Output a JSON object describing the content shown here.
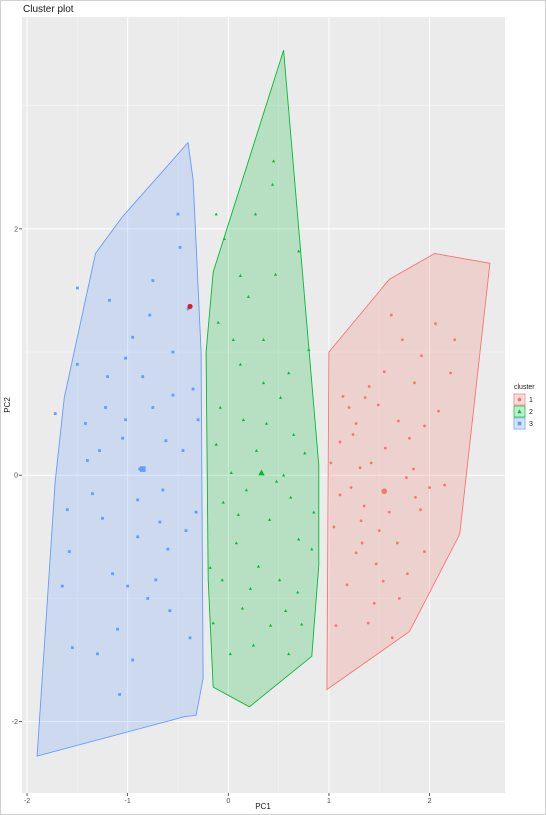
{
  "chart_data": {
    "type": "scatter",
    "title": "Cluster plot",
    "xlabel": "PC1",
    "ylabel": "PC2",
    "xlim": [
      -2.05,
      2.75
    ],
    "ylim": [
      -2.58,
      3.72
    ],
    "x_ticks": [
      "-2",
      "-1",
      "0",
      "1",
      "2"
    ],
    "x_tick_values": [
      -2,
      -1,
      0,
      1,
      2
    ],
    "y_ticks": [
      "-2",
      "0",
      "2"
    ],
    "y_tick_values": [
      -2,
      0,
      2
    ],
    "grid": true,
    "legend": {
      "title": "cluster",
      "placement": "right",
      "entries": [
        {
          "label": "1",
          "shape": "circle",
          "color": "#F8766D"
        },
        {
          "label": "2",
          "shape": "triangle",
          "color": "#00BA38"
        },
        {
          "label": "3",
          "shape": "square",
          "color": "#619CFF"
        }
      ]
    },
    "series": [
      {
        "name": "1",
        "color": "#F8766D",
        "shape": "circle",
        "center": [
          1.55,
          -0.13
        ],
        "hull": [
          [
            2.05,
            1.8
          ],
          [
            2.6,
            1.72
          ],
          [
            2.3,
            -0.48
          ],
          [
            1.8,
            -1.27
          ],
          [
            0.98,
            -1.74
          ],
          [
            1.0,
            1.0
          ],
          [
            1.6,
            1.59
          ]
        ],
        "points": [
          [
            1.77,
            -0.02
          ],
          [
            1.68,
            -0.55
          ],
          [
            1.11,
            -0.16
          ],
          [
            1.32,
            -0.37
          ],
          [
            1.42,
            0.1
          ],
          [
            1.27,
            -0.63
          ],
          [
            2.0,
            -0.1
          ],
          [
            1.91,
            -0.28
          ],
          [
            1.14,
            0.64
          ],
          [
            1.24,
            0.33
          ],
          [
            1.92,
            0.97
          ],
          [
            1.69,
            0.44
          ],
          [
            1.86,
            -0.18
          ],
          [
            1.31,
            0.06
          ],
          [
            1.47,
            -0.72
          ],
          [
            1.39,
            -1.2
          ],
          [
            1.54,
            -0.86
          ],
          [
            2.21,
            0.83
          ],
          [
            2.06,
            1.23
          ],
          [
            1.73,
            1.1
          ],
          [
            1.85,
            0.75
          ],
          [
            1.55,
            0.84
          ],
          [
            1.36,
            0.63
          ],
          [
            1.05,
            -0.42
          ],
          [
            1.02,
            0.1
          ],
          [
            1.6,
            -0.3
          ],
          [
            2.09,
            0.52
          ],
          [
            1.49,
            0.57
          ],
          [
            1.18,
            -0.89
          ],
          [
            1.78,
            -0.8
          ],
          [
            2.25,
            1.1
          ],
          [
            1.62,
            1.3
          ],
          [
            1.45,
            -1.04
          ],
          [
            1.95,
            -0.62
          ],
          [
            1.11,
            0.27
          ],
          [
            1.33,
            -0.55
          ],
          [
            1.22,
            -0.1
          ],
          [
            1.7,
            -1.0
          ],
          [
            1.56,
            0.22
          ],
          [
            1.8,
            0.3
          ],
          [
            1.27,
            0.42
          ],
          [
            1.4,
            0.72
          ],
          [
            1.5,
            -0.45
          ],
          [
            1.07,
            -1.22
          ],
          [
            1.95,
            0.4
          ],
          [
            1.63,
            -1.32
          ],
          [
            1.84,
            0.05
          ],
          [
            1.2,
            0.55
          ],
          [
            1.35,
            -0.25
          ],
          [
            2.15,
            -0.08
          ]
        ]
      },
      {
        "name": "2",
        "color": "#00BA38",
        "shape": "triangle",
        "center": [
          0.33,
          0.02
        ],
        "hull": [
          [
            0.55,
            3.45
          ],
          [
            0.9,
            0.08
          ],
          [
            0.9,
            -0.73
          ],
          [
            0.83,
            -1.47
          ],
          [
            0.21,
            -1.88
          ],
          [
            -0.15,
            -1.72
          ],
          [
            -0.2,
            -0.85
          ],
          [
            -0.22,
            1.0
          ],
          [
            -0.15,
            1.65
          ]
        ],
        "points": [
          [
            0.45,
            2.55
          ],
          [
            -0.12,
            2.12
          ],
          [
            0.05,
            1.1
          ],
          [
            0.35,
            1.1
          ],
          [
            0.7,
            1.82
          ],
          [
            0.52,
            0.63
          ],
          [
            -0.1,
            1.24
          ],
          [
            0.12,
            0.9
          ],
          [
            0.6,
            0.83
          ],
          [
            0.28,
            0.2
          ],
          [
            0.76,
            0.18
          ],
          [
            0.18,
            -0.12
          ],
          [
            0.41,
            -0.36
          ],
          [
            -0.05,
            -0.22
          ],
          [
            0.62,
            -0.18
          ],
          [
            0.83,
            -0.6
          ],
          [
            0.08,
            -0.55
          ],
          [
            0.3,
            -0.74
          ],
          [
            0.51,
            -0.85
          ],
          [
            0.69,
            -0.95
          ],
          [
            -0.18,
            -0.75
          ],
          [
            0.14,
            -1.08
          ],
          [
            0.42,
            -1.22
          ],
          [
            0.73,
            -1.21
          ],
          [
            0.02,
            -1.45
          ],
          [
            0.25,
            -1.38
          ],
          [
            0.6,
            -1.45
          ],
          [
            -0.15,
            -1.2
          ],
          [
            0.38,
            0.42
          ],
          [
            -0.08,
            0.55
          ],
          [
            0.2,
            1.45
          ],
          [
            0.47,
            1.63
          ],
          [
            0.27,
            2.12
          ],
          [
            -0.04,
            1.92
          ],
          [
            0.65,
            0.33
          ],
          [
            0.15,
            0.45
          ],
          [
            0.55,
            0.0
          ],
          [
            -0.12,
            0.25
          ],
          [
            0.35,
            0.75
          ],
          [
            0.85,
            -0.3
          ],
          [
            0.03,
            0.02
          ],
          [
            0.48,
            -0.05
          ],
          [
            0.7,
            -0.52
          ],
          [
            0.22,
            -0.92
          ],
          [
            -0.06,
            -0.85
          ],
          [
            0.57,
            -1.1
          ],
          [
            0.44,
            2.36
          ],
          [
            0.12,
            1.62
          ],
          [
            0.8,
            1.02
          ],
          [
            0.1,
            -0.32
          ]
        ]
      },
      {
        "name": "3",
        "color": "#619CFF",
        "shape": "square",
        "center": [
          -0.85,
          0.05
        ],
        "hull": [
          [
            -0.4,
            2.7
          ],
          [
            -0.35,
            2.4
          ],
          [
            -0.27,
            1.0
          ],
          [
            -0.25,
            -1.65
          ],
          [
            -0.32,
            -1.95
          ],
          [
            -0.43,
            -1.96
          ],
          [
            -1.9,
            -2.28
          ],
          [
            -1.72,
            -0.05
          ],
          [
            -1.63,
            0.63
          ],
          [
            -1.32,
            1.8
          ],
          [
            -1.05,
            2.1
          ]
        ],
        "points": [
          [
            -1.5,
            1.52
          ],
          [
            -1.72,
            0.5
          ],
          [
            -1.58,
            -0.62
          ],
          [
            -1.2,
            0.8
          ],
          [
            -1.05,
            0.3
          ],
          [
            -0.9,
            -0.2
          ],
          [
            -0.75,
            0.55
          ],
          [
            -0.55,
            1.0
          ],
          [
            -0.6,
            -0.6
          ],
          [
            -0.8,
            -1.0
          ],
          [
            -1.3,
            -1.45
          ],
          [
            -1.1,
            -1.25
          ],
          [
            -0.48,
            1.85
          ],
          [
            -0.35,
            0.7
          ],
          [
            -0.95,
            1.12
          ],
          [
            -1.4,
            0.12
          ],
          [
            -1.25,
            -0.35
          ],
          [
            -1.65,
            -0.9
          ],
          [
            -0.5,
            2.12
          ],
          [
            -0.78,
            1.3
          ],
          [
            -0.62,
            0.28
          ],
          [
            -0.42,
            -0.45
          ],
          [
            -0.95,
            -1.5
          ],
          [
            -1.15,
            -0.8
          ],
          [
            -1.5,
            0.9
          ],
          [
            -1.35,
            -0.15
          ],
          [
            -0.85,
            0.8
          ],
          [
            -0.65,
            -0.12
          ],
          [
            -0.45,
            0.2
          ],
          [
            -0.72,
            -0.85
          ],
          [
            -1.02,
            0.45
          ],
          [
            -1.18,
            1.42
          ],
          [
            -1.42,
            0.42
          ],
          [
            -0.3,
            0.45
          ],
          [
            -0.9,
            -0.5
          ],
          [
            -1.6,
            -0.28
          ],
          [
            -1.28,
            0.2
          ],
          [
            -0.55,
            0.65
          ],
          [
            -0.38,
            -1.32
          ],
          [
            -0.58,
            -1.1
          ],
          [
            -1.08,
            -1.78
          ],
          [
            -1.02,
            0.95
          ],
          [
            -0.75,
            1.58
          ],
          [
            -0.88,
            0.05
          ],
          [
            -1.22,
            0.55
          ],
          [
            -0.68,
            -0.38
          ],
          [
            -0.4,
            1.35
          ],
          [
            -1.0,
            -0.9
          ],
          [
            -1.55,
            -1.4
          ],
          [
            -0.32,
            -0.3
          ]
        ]
      }
    ],
    "highlighted_point": {
      "x": -0.38,
      "y": 1.37,
      "color": "#E41A1C"
    }
  }
}
